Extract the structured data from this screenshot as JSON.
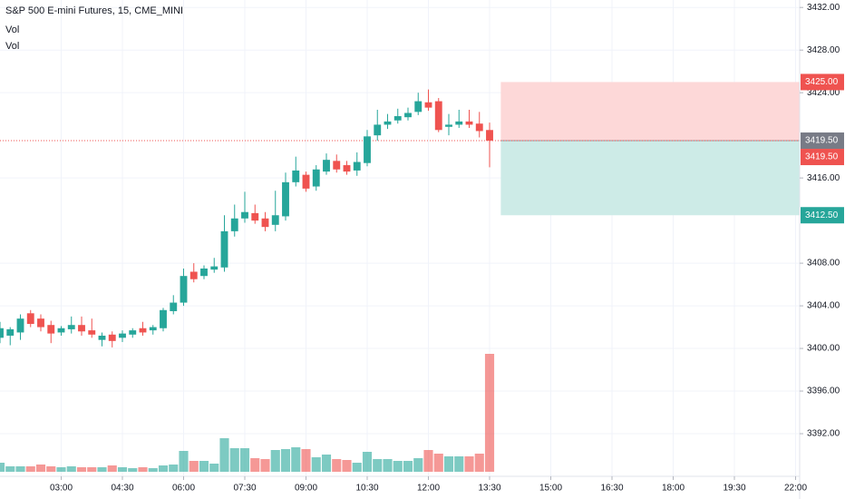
{
  "chart_data": {
    "type": "candlestick",
    "title": "S&P 500 E-mini Futures, 15, CME_MINI",
    "indicators": [
      "Vol",
      "Vol"
    ],
    "x": [
      0,
      1,
      2,
      3,
      4,
      5,
      6,
      7,
      8,
      9,
      10,
      11,
      12,
      13,
      14,
      15,
      16,
      17,
      18,
      19,
      20,
      21,
      22,
      23,
      24,
      25,
      26,
      27,
      28,
      29,
      30,
      31,
      32,
      33,
      34,
      35,
      36,
      37,
      38,
      39,
      40,
      41,
      42,
      43,
      44,
      45,
      46,
      47,
      48
    ],
    "open": [
      3401.0,
      3401.2,
      3401.5,
      3403.3,
      3402.8,
      3402.2,
      3401.5,
      3401.8,
      3402.2,
      3401.7,
      3400.8,
      3401.3,
      3401.0,
      3401.3,
      3401.9,
      3401.7,
      3401.9,
      3403.5,
      3404.3,
      3407.2,
      3406.8,
      3407.4,
      3407.6,
      3411.0,
      3412.2,
      3412.7,
      3412.2,
      3411.6,
      3412.4,
      3415.6,
      3416.3,
      3415.2,
      3416.6,
      3417.6,
      3417.2,
      3416.7,
      3417.4,
      3420.0,
      3421.0,
      3421.4,
      3421.7,
      3422.2,
      3423.1,
      3423.2,
      3420.8,
      3421.0,
      3421.3,
      3421.1,
      3420.5
    ],
    "high": [
      3402.5,
      3402.0,
      3403.2,
      3403.6,
      3403.2,
      3402.6,
      3402.1,
      3403.0,
      3403.0,
      3402.8,
      3401.5,
      3401.6,
      3401.7,
      3401.9,
      3402.5,
      3402.2,
      3403.8,
      3405.0,
      3407.5,
      3408.0,
      3407.8,
      3408.5,
      3412.5,
      3413.5,
      3414.7,
      3413.5,
      3412.8,
      3414.8,
      3416.5,
      3418.0,
      3416.6,
      3417.2,
      3418.3,
      3418.2,
      3417.6,
      3418.4,
      3420.5,
      3422.4,
      3422.0,
      3422.5,
      3422.6,
      3424.0,
      3424.3,
      3423.5,
      3422.0,
      3422.4,
      3422.4,
      3422.2,
      3421.2
    ],
    "low": [
      3400.5,
      3400.3,
      3400.8,
      3402.0,
      3401.6,
      3400.5,
      3401.2,
      3401.4,
      3401.2,
      3401.0,
      3400.2,
      3400.1,
      3400.6,
      3401.0,
      3401.2,
      3401.3,
      3401.6,
      3403.2,
      3404.0,
      3406.2,
      3406.5,
      3407.1,
      3407.2,
      3410.5,
      3411.8,
      3411.7,
      3411.0,
      3411.0,
      3412.0,
      3415.2,
      3414.7,
      3414.8,
      3416.3,
      3416.5,
      3416.3,
      3416.2,
      3417.1,
      3419.5,
      3420.6,
      3421.1,
      3421.4,
      3421.9,
      3422.3,
      3420.3,
      3420.0,
      3420.7,
      3420.7,
      3419.8,
      3417.0
    ],
    "close": [
      3401.9,
      3401.8,
      3402.8,
      3402.3,
      3402.0,
      3401.4,
      3401.9,
      3402.2,
      3401.6,
      3401.3,
      3401.2,
      3400.7,
      3401.4,
      3401.7,
      3401.5,
      3402.0,
      3403.6,
      3404.3,
      3406.8,
      3406.5,
      3407.5,
      3407.7,
      3411.0,
      3412.2,
      3412.8,
      3412.0,
      3411.4,
      3412.5,
      3415.6,
      3416.7,
      3415.0,
      3416.8,
      3417.7,
      3416.8,
      3416.6,
      3417.5,
      3419.9,
      3421.0,
      3421.3,
      3421.8,
      3422.1,
      3423.2,
      3422.6,
      3420.5,
      3421.0,
      3421.3,
      3421.0,
      3420.4,
      3419.5
    ],
    "volume": [
      2000,
      1200,
      1200,
      1200,
      1600,
      1200,
      1000,
      1200,
      1000,
      1000,
      1000,
      1400,
      1000,
      800,
      1000,
      800,
      1400,
      1600,
      4600,
      2400,
      2400,
      1800,
      7400,
      5200,
      5200,
      3000,
      2800,
      4800,
      5000,
      5400,
      5000,
      3200,
      3800,
      2800,
      2600,
      2000,
      4400,
      2800,
      2800,
      2400,
      2400,
      3000,
      4800,
      4000,
      3400,
      3400,
      3400,
      4000,
      26000
    ],
    "up_color": "#26a69a",
    "down_color": "#ef5350",
    "xlim": [
      0,
      78.4
    ],
    "ylim": [
      3388,
      3432.7
    ],
    "y2lim": [
      0,
      50000
    ],
    "xticks": [
      {
        "value": 6,
        "label": "03:00"
      },
      {
        "value": 12,
        "label": "04:30"
      },
      {
        "value": 18,
        "label": "06:00"
      },
      {
        "value": 24,
        "label": "07:30"
      },
      {
        "value": 30,
        "label": "09:00"
      },
      {
        "value": 36,
        "label": "10:30"
      },
      {
        "value": 42,
        "label": "12:00"
      },
      {
        "value": 48,
        "label": "13:30"
      },
      {
        "value": 54,
        "label": "15:00"
      },
      {
        "value": 60,
        "label": "16:30"
      },
      {
        "value": 66,
        "label": "18:00"
      },
      {
        "value": 72,
        "label": "19:30"
      },
      {
        "value": 78,
        "label": "22:00"
      }
    ],
    "yticks": [
      {
        "value": 3392,
        "label": "3392.00"
      },
      {
        "value": 3396,
        "label": "3396.00"
      },
      {
        "value": 3400,
        "label": "3400.00"
      },
      {
        "value": 3404,
        "label": "3404.00"
      },
      {
        "value": 3408,
        "label": "3408.00"
      },
      {
        "value": 3416,
        "label": "3416.00"
      },
      {
        "value": 3424,
        "label": "3424.00"
      },
      {
        "value": 3428,
        "label": "3428.00"
      },
      {
        "value": 3432,
        "label": "3432.00"
      }
    ],
    "grid": true,
    "last_price": 3419.5,
    "position": {
      "x_start": 49.1,
      "entry": 3419.5,
      "stop": 3425,
      "target": 3412.5,
      "stop_color": "#fdd8d8",
      "target_color": "#cdebe7"
    },
    "price_labels": [
      {
        "value": 3425,
        "label": "3425.00",
        "color": "#ef5350"
      },
      {
        "value": 3419.5,
        "label": "3419.50",
        "color": "#787b86"
      },
      {
        "value": 3419.5,
        "label": "3419.50",
        "color": "#ef5350"
      },
      {
        "value": 3412.5,
        "label": "3412.50",
        "color": "#26a69a"
      }
    ]
  }
}
